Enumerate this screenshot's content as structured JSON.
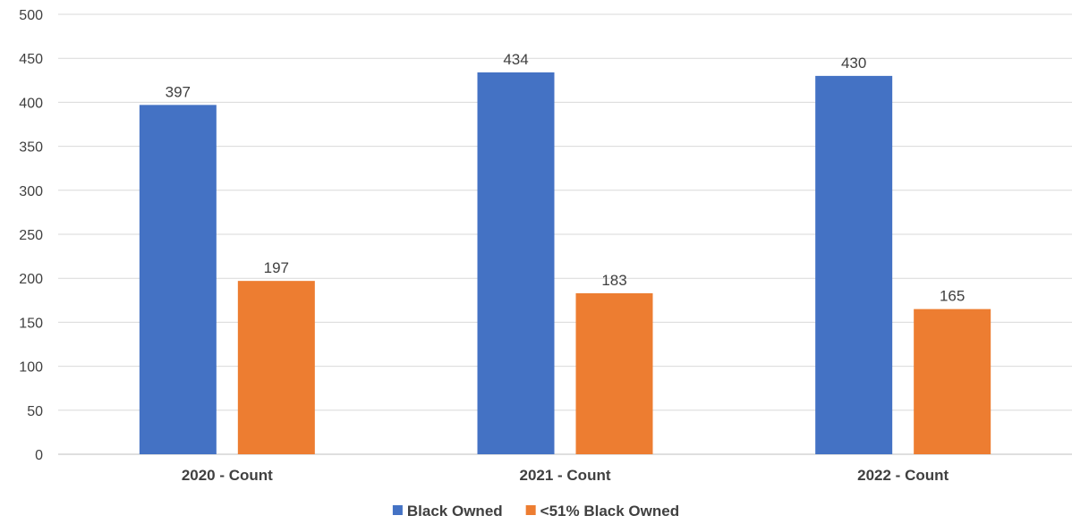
{
  "chart_data": {
    "type": "bar",
    "categories": [
      "2020 - Count",
      "2021 - Count",
      "2022 - Count"
    ],
    "series": [
      {
        "name": "Black Owned",
        "values": [
          397,
          434,
          430
        ],
        "color": "#4472C4"
      },
      {
        "name": "<51% Black Owned",
        "values": [
          197,
          183,
          165
        ],
        "color": "#ED7D31"
      }
    ],
    "ylim": [
      0,
      500
    ],
    "yticks": [
      0,
      50,
      100,
      150,
      200,
      250,
      300,
      350,
      400,
      450,
      500
    ],
    "grid": true,
    "gridline_color": "#D9D9D9",
    "data_labels": true,
    "legend_position": "bottom"
  }
}
